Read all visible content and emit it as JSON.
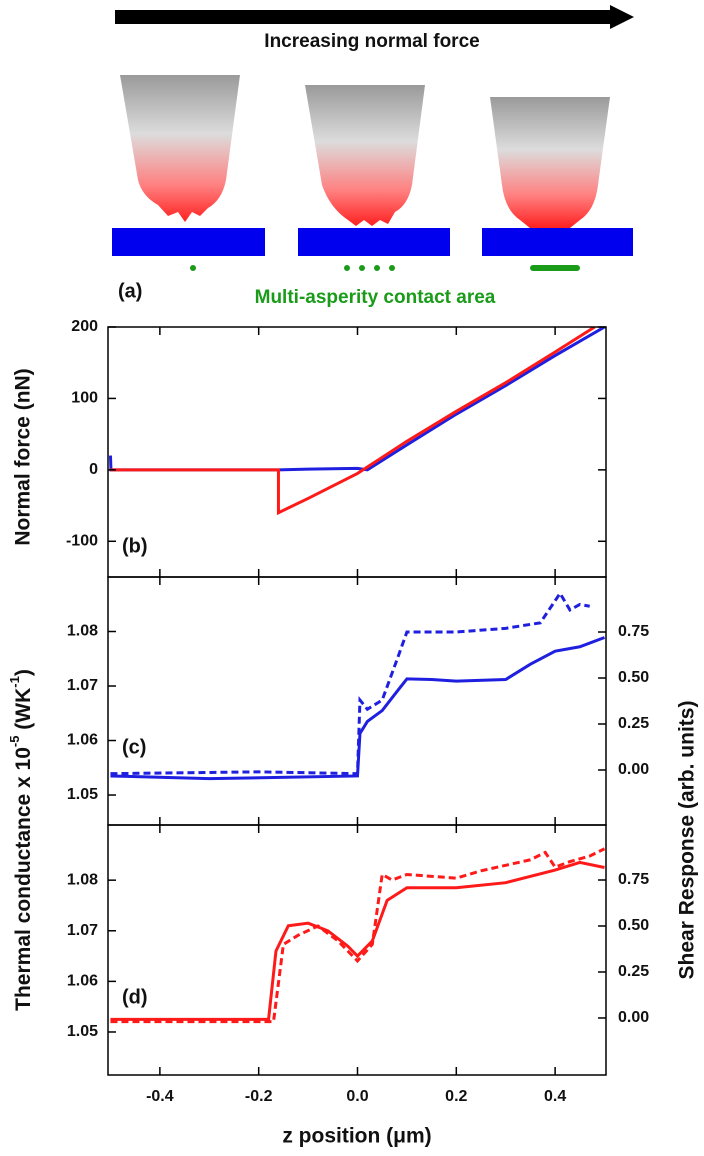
{
  "schematic": {
    "arrow_label": "Increasing normal force",
    "panel_label": "(a)",
    "contact_label": "Multi-asperity contact area"
  },
  "chart_data": [
    {
      "type": "line",
      "panel_label": "(b)",
      "ylabel": "Normal force (nN)",
      "xlim": [
        -0.505,
        0.503
      ],
      "ylim": [
        -150,
        200
      ],
      "yticks": [
        -100,
        0,
        100,
        200
      ],
      "series": [
        {
          "color": "#1f1fe0",
          "line_style": "solid",
          "x": [
            -0.5,
            -0.499,
            -0.4,
            -0.2,
            -0.16,
            -0.1,
            0,
            0.02,
            0.1,
            0.2,
            0.3,
            0.4,
            0.5
          ],
          "values": [
            20,
            0,
            0,
            0,
            0,
            1,
            2,
            0,
            35,
            78,
            118,
            160,
            200
          ]
        },
        {
          "color": "#ff1a1a",
          "line_style": "solid",
          "x": [
            -0.5,
            -0.16,
            -0.16,
            -0.1,
            0,
            0.1,
            0.2,
            0.3,
            0.4,
            0.48
          ],
          "values": [
            0,
            0,
            -60,
            -40,
            -5,
            40,
            82,
            122,
            165,
            200
          ]
        }
      ]
    },
    {
      "type": "line",
      "panel_label": "(c)",
      "ylabel": [
        "Thermal conductance x 10",
        "-5",
        " (WK",
        "-1",
        ")"
      ],
      "y2label": "Shear Response (arb. units)",
      "xlim": [
        -0.505,
        0.503
      ],
      "ylim": [
        1.0445,
        1.09
      ],
      "yticks": [
        1.05,
        1.06,
        1.07,
        1.08
      ],
      "y2lim": [
        -0.299,
        1.049
      ],
      "y2ticks": [
        {
          "value": 0,
          "label": "0.00"
        },
        0.25,
        {
          "value": 0.5,
          "label": "0.50"
        },
        0.75
      ],
      "series": [
        {
          "color": "#1f1fe0",
          "line_style": "solid",
          "x": [
            -0.5,
            -0.3,
            0,
            0.005,
            0.02,
            0.05,
            0.08,
            0.1,
            0.15,
            0.2,
            0.3,
            0.35,
            0.4,
            0.45,
            0.5
          ],
          "values": [
            1.0535,
            1.053,
            1.0535,
            1.0613,
            1.0635,
            1.0655,
            1.069,
            1.0713,
            1.0712,
            1.0709,
            1.0712,
            1.074,
            1.0764,
            1.0772,
            1.0789
          ]
        },
        {
          "color": "#1f1fe0",
          "line_style": "dashed",
          "axis": "y2",
          "x": [
            -0.5,
            -0.2,
            0,
            0.005,
            0.02,
            0.05,
            0.08,
            0.1,
            0.2,
            0.3,
            0.37,
            0.41,
            0.43,
            0.45,
            0.47
          ],
          "values": [
            -0.02,
            -0.01,
            -0.02,
            0.38,
            0.33,
            0.38,
            0.6,
            0.75,
            0.75,
            0.77,
            0.8,
            0.96,
            0.87,
            0.9,
            0.89
          ]
        }
      ]
    },
    {
      "type": "line",
      "panel_label": "(d)",
      "xlabel": "z position (μm)",
      "xlim": [
        -0.505,
        0.503
      ],
      "xticks": [
        -0.4,
        -0.2,
        {
          "value": 0,
          "label": "0.0"
        },
        0.2,
        0.4
      ],
      "ylim": [
        1.0415,
        1.0909
      ],
      "yticks": [
        1.05,
        1.06,
        1.07,
        1.08
      ],
      "y2lim": [
        -0.31,
        1.049
      ],
      "y2ticks": [
        {
          "value": 0,
          "label": "0.00"
        },
        0.25,
        {
          "value": 0.5,
          "label": "0.50"
        },
        0.75
      ],
      "series": [
        {
          "color": "#ff1a1a",
          "line_style": "solid",
          "x": [
            -0.5,
            -0.18,
            -0.165,
            -0.14,
            -0.1,
            -0.06,
            -0.02,
            0,
            0.03,
            0.06,
            0.1,
            0.2,
            0.3,
            0.4,
            0.45,
            0.5
          ],
          "values": [
            1.0525,
            1.0525,
            1.066,
            1.071,
            1.0715,
            1.07,
            1.067,
            1.065,
            1.068,
            1.076,
            1.0785,
            1.0785,
            1.0795,
            1.082,
            1.0835,
            1.0825
          ]
        },
        {
          "color": "#ff1a1a",
          "line_style": "dashed",
          "axis": "y2",
          "x": [
            -0.5,
            -0.17,
            -0.15,
            -0.12,
            -0.08,
            -0.04,
            0,
            0.03,
            0.05,
            0.07,
            0.1,
            0.2,
            0.25,
            0.3,
            0.35,
            0.38,
            0.4,
            0.43,
            0.47,
            0.5
          ],
          "values": [
            -0.02,
            -0.02,
            0.4,
            0.45,
            0.5,
            0.42,
            0.31,
            0.4,
            0.78,
            0.75,
            0.78,
            0.76,
            0.8,
            0.83,
            0.86,
            0.9,
            0.82,
            0.85,
            0.88,
            0.92
          ]
        }
      ]
    }
  ]
}
